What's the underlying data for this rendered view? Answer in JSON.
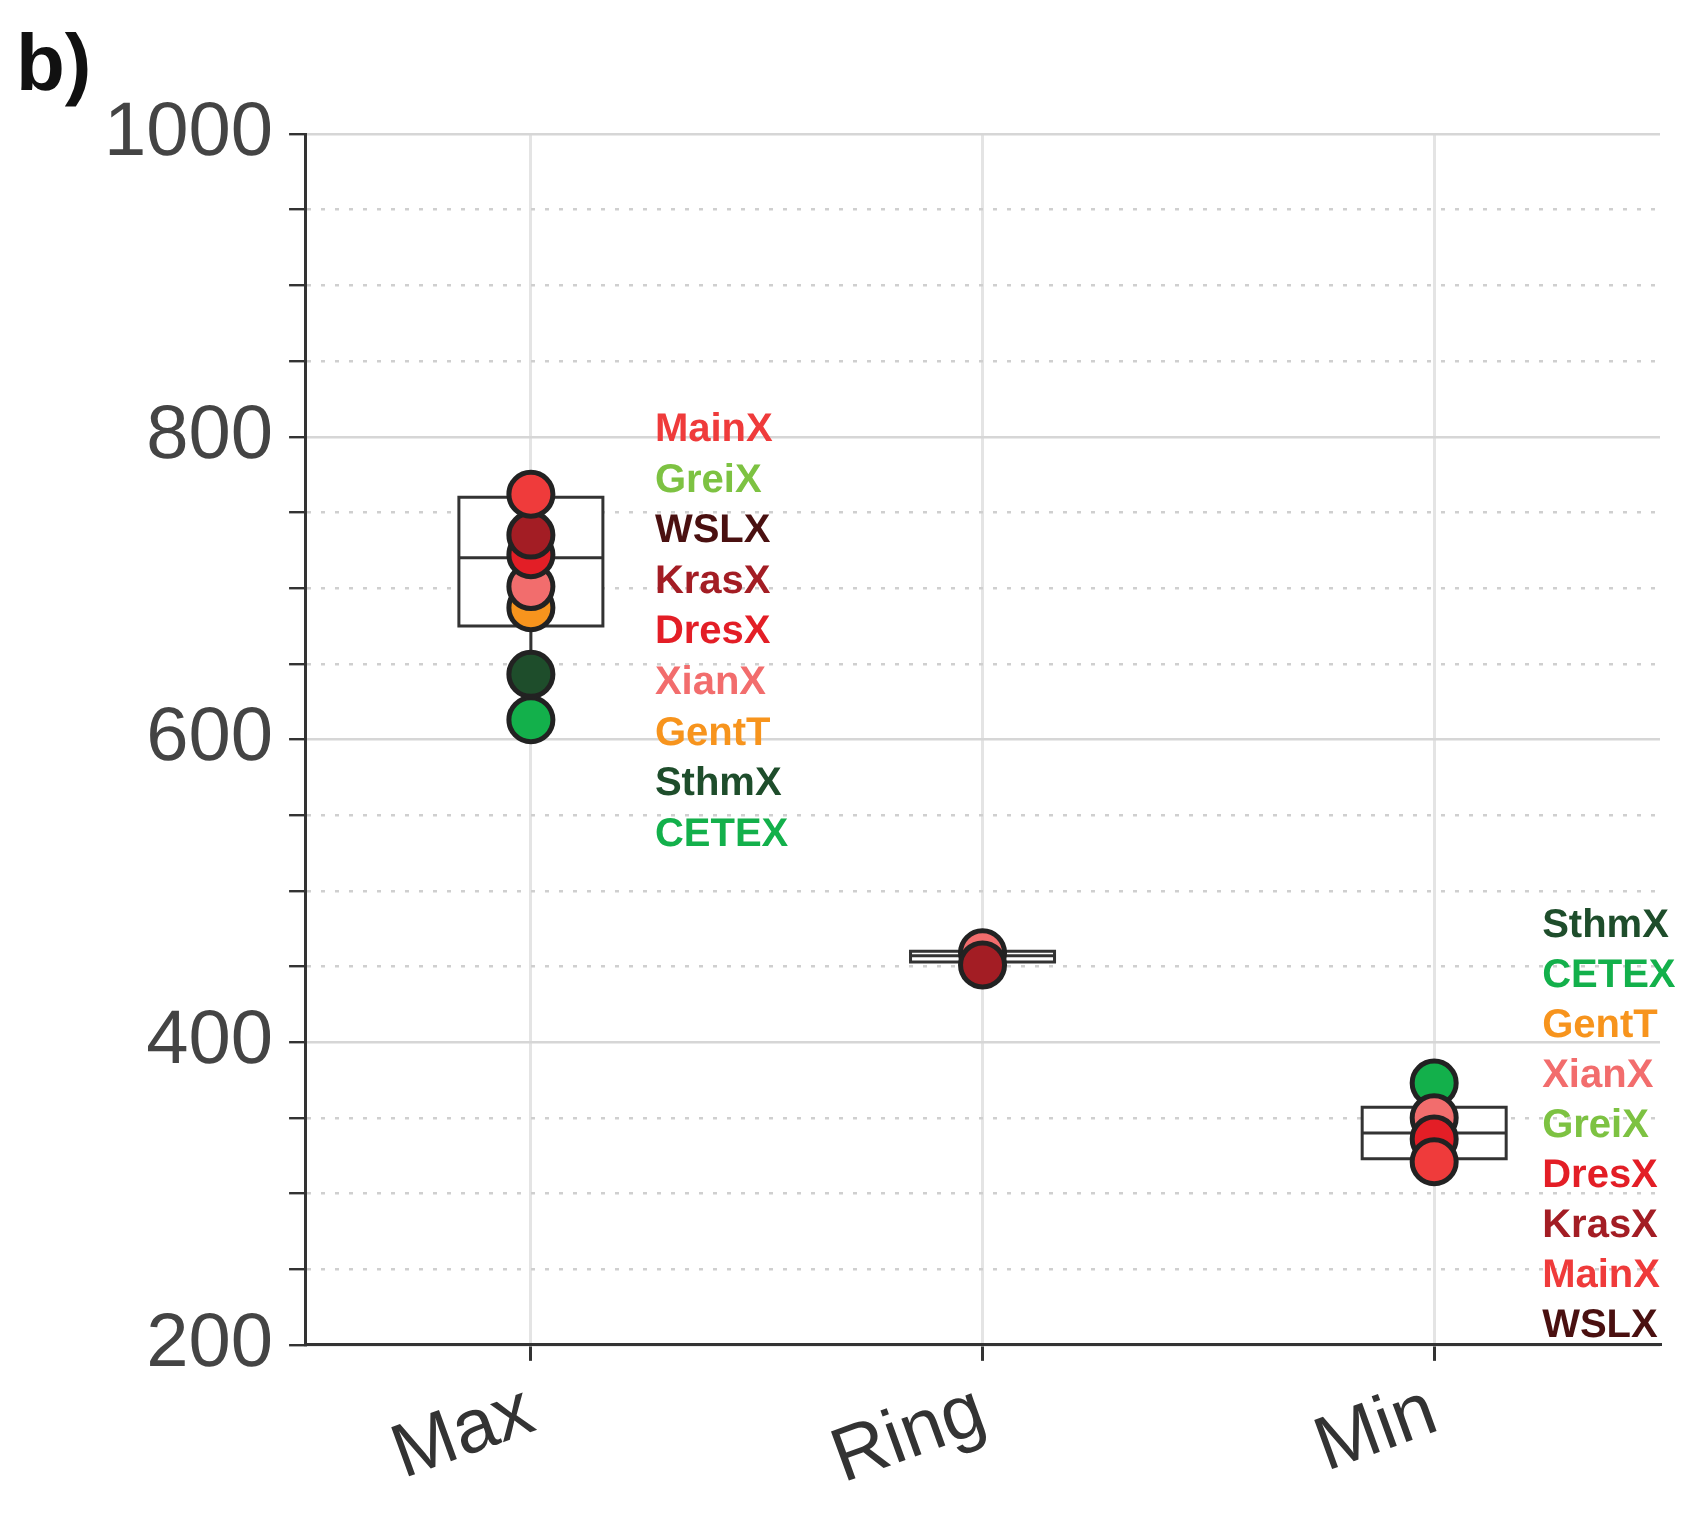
{
  "chart_data": {
    "type": "box",
    "title": "b)",
    "categories": [
      "Max",
      "Ring",
      "Min"
    ],
    "boxes": [
      {
        "low": 613,
        "q1": 675,
        "median": 720,
        "q3": 760,
        "high": 762
      },
      {
        "low": 449,
        "q1": 453,
        "median": 457,
        "q3": 460,
        "high": 462
      },
      {
        "low": 321,
        "q1": 323,
        "median": 340,
        "q3": 357,
        "high": 375
      }
    ],
    "series": [
      {
        "name": "MainX",
        "type": "scatter",
        "color": "#ef3b3b",
        "values": [
          762,
          null,
          321
        ]
      },
      {
        "name": "GreiX",
        "type": "scatter",
        "color": "#7dc242",
        "values": [
          null,
          null,
          null
        ]
      },
      {
        "name": "WSLX",
        "type": "scatter",
        "color": "#4a1010",
        "values": [
          null,
          null,
          null
        ]
      },
      {
        "name": "KrasX",
        "type": "scatter",
        "color": "#a31d24",
        "values": [
          735,
          451,
          null
        ]
      },
      {
        "name": "DresX",
        "type": "scatter",
        "color": "#e31e26",
        "values": [
          722,
          null,
          336
        ]
      },
      {
        "name": "XianX",
        "type": "scatter",
        "color": "#f26d6d",
        "values": [
          701,
          459,
          350
        ]
      },
      {
        "name": "GentT",
        "type": "scatter",
        "color": "#f7941d",
        "values": [
          687,
          null,
          null
        ]
      },
      {
        "name": "SthmX",
        "type": "scatter",
        "color": "#1e4d2b",
        "values": [
          643,
          null,
          null
        ]
      },
      {
        "name": "CETEX",
        "type": "scatter",
        "color": "#13b04b",
        "values": [
          613,
          null,
          373
        ]
      }
    ],
    "annotations": [
      "SthmX",
      "CETEX",
      "GentT",
      "XianX",
      "GreiX",
      "DresX",
      "KrasX",
      "MainX",
      "WSLX"
    ],
    "ylim": [
      200,
      1000
    ],
    "yticks": [
      200,
      {
        "value": 250,
        "label": null
      },
      {
        "value": 300,
        "label": null
      },
      {
        "value": 350,
        "label": null
      },
      400,
      {
        "value": 450,
        "label": null
      },
      {
        "value": 500,
        "label": null
      },
      {
        "value": 550,
        "label": null
      },
      600,
      {
        "value": 650,
        "label": null
      },
      {
        "value": 700,
        "label": null
      },
      {
        "value": 750,
        "label": null
      },
      800,
      {
        "value": 850,
        "label": null
      },
      {
        "value": 900,
        "label": null
      },
      {
        "value": 950,
        "label": null
      },
      1000
    ],
    "grid": true,
    "marker": "circle",
    "legend": false
  }
}
